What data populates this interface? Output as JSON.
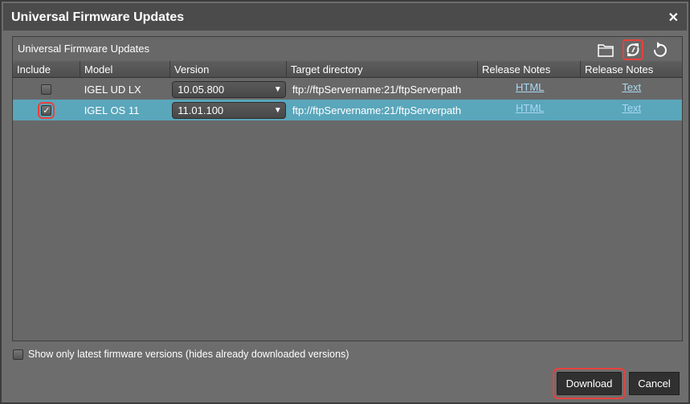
{
  "window": {
    "title": "Universal Firmware Updates",
    "close": "✕"
  },
  "panel": {
    "title": "Universal Firmware Updates",
    "tools": [
      {
        "icon": "folder-icon"
      },
      {
        "icon": "sync-icon"
      },
      {
        "icon": "undo-icon"
      }
    ]
  },
  "table": {
    "columns": [
      "Include",
      "Model",
      "Version",
      "Target directory",
      "Release Notes",
      "Release Notes"
    ],
    "rows": [
      {
        "include": false,
        "model": "IGEL UD LX",
        "version": "10.05.800",
        "target": "ftp://ftpServername:21/ftpServerpath",
        "html": "HTML",
        "text": "Text",
        "selected": false
      },
      {
        "include": true,
        "model": "IGEL OS 11",
        "version": "11.01.100",
        "target": "ftp://ftpServername:21/ftpServerpath",
        "html": "HTML",
        "text": "Text",
        "selected": true
      }
    ]
  },
  "option": {
    "label": "Show only latest firmware versions (hides already downloaded versions)",
    "checked": false
  },
  "buttons": {
    "download": "Download",
    "cancel": "Cancel"
  },
  "colors": {
    "selected_row": "#5aa6bb",
    "highlight": "#e8413c",
    "link": "#a9d8f2"
  }
}
